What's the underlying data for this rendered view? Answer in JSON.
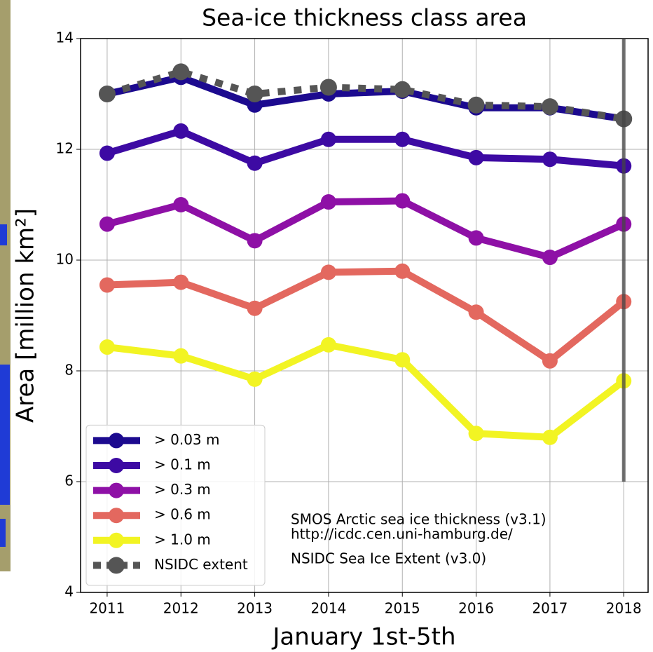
{
  "chart_data": {
    "type": "line",
    "title": "Sea-ice thickness class area",
    "x_label": "January 1st-5th",
    "y_label": "Area [million km²]",
    "x": [
      2011,
      2012,
      2013,
      2014,
      2015,
      2016,
      2017,
      2018
    ],
    "xlim": [
      2010.64,
      2018.33
    ],
    "xticks": [
      2011,
      2012,
      2013,
      2014,
      2015,
      2016,
      2017,
      2018
    ],
    "ylim": [
      4,
      14
    ],
    "yticks": [
      4,
      6,
      8,
      10,
      12,
      14
    ],
    "grid": true,
    "legend": "lower left",
    "series": [
      {
        "name": "> 0.03 m",
        "color": "#1c0a8f",
        "values": [
          13.0,
          13.3,
          12.8,
          13.0,
          13.05,
          12.75,
          12.75,
          12.55
        ]
      },
      {
        "name": "> 0.1 m",
        "color": "#3d0aa3",
        "values": [
          11.93,
          12.33,
          11.75,
          12.18,
          12.18,
          11.85,
          11.82,
          11.7
        ]
      },
      {
        "name": "> 0.3 m",
        "color": "#8e10a6",
        "values": [
          10.65,
          11.0,
          10.35,
          11.05,
          11.07,
          10.4,
          10.05,
          10.65
        ]
      },
      {
        "name": "> 0.6 m",
        "color": "#e3685f",
        "values": [
          9.55,
          9.6,
          9.13,
          9.78,
          9.8,
          9.06,
          8.18,
          9.25
        ]
      },
      {
        "name": "> 1.0 m",
        "color": "#f2f423",
        "values": [
          8.43,
          8.27,
          7.85,
          8.47,
          8.2,
          6.87,
          6.8,
          7.82
        ]
      },
      {
        "name": "NSIDC extent",
        "color": "#555555",
        "dashed": true,
        "values": [
          13.0,
          13.4,
          13.0,
          13.12,
          13.08,
          12.8,
          12.77,
          12.55
        ]
      }
    ],
    "cursor": {
      "x": 2018,
      "ymin": 6,
      "ymax": 14
    },
    "annotations": [
      "SMOS Arctic sea ice thickness (v3.1)",
      "http://icdc.cen.uni-hamburg.de/",
      "NSIDC Sea Ice Extent (v3.0)"
    ]
  }
}
